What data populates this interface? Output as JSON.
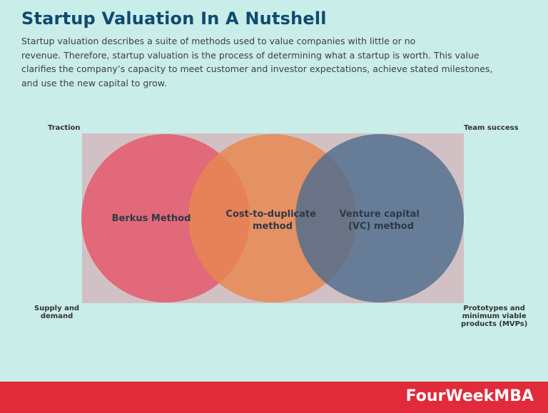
{
  "title": "Startup Valuation In A Nutshell",
  "description_lines": [
    "Startup valuation describes a suite of methods used to value companies with little or no",
    "revenue. Therefore, startup valuation is the process of determining what a startup is worth. This value",
    "clarifies the company’s capacity to meet customer and investor expectations, achieve stated milestones,",
    "and use the new capital to grow."
  ],
  "corners": {
    "top_left": "Traction",
    "top_right": "Team success",
    "bottom_left": [
      "Supply and",
      "demand"
    ],
    "bottom_right": [
      "Prototypes and",
      "minimum viable",
      "products (MVPs)"
    ]
  },
  "circles": [
    {
      "label_lines": [
        "Berkus Method"
      ],
      "color": "#e25c6e"
    },
    {
      "label_lines": [
        "Cost-to-duplicate",
        "method"
      ],
      "color": "#e8864f"
    },
    {
      "label_lines": [
        "Venture capital",
        "(VC) method"
      ],
      "color": "#4f6d8e"
    }
  ],
  "colors": {
    "background": "#c9ede9",
    "rectangle": "#d2c1c4",
    "title": "#0f4a70",
    "footer": "#e12a3a"
  },
  "footer": {
    "brand": "FourWeekMBA"
  }
}
